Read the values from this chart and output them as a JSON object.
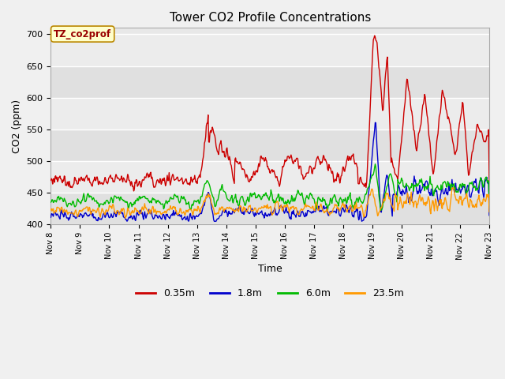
{
  "title": "Tower CO2 Profile Concentrations",
  "xlabel": "Time",
  "ylabel": "CO2 (ppm)",
  "ylim": [
    400,
    710
  ],
  "yticks": [
    400,
    450,
    500,
    550,
    600,
    650,
    700
  ],
  "label_text": "TZ_co2prof",
  "series_labels": [
    "0.35m",
    "1.8m",
    "6.0m",
    "23.5m"
  ],
  "series_colors": [
    "#cc0000",
    "#0000cc",
    "#00bb00",
    "#ff9900"
  ],
  "fig_bg_color": "#f0f0f0",
  "plot_bg_color": "#e8e8e8",
  "band_color_light": "#ebebeb",
  "band_color_dark": "#d8d8d8",
  "grid_color": "#ffffff",
  "n_points": 720,
  "x_start": 8.0,
  "x_end": 23.0,
  "xtick_positions": [
    8,
    9,
    10,
    11,
    12,
    13,
    14,
    15,
    16,
    17,
    18,
    19,
    20,
    21,
    22,
    23
  ],
  "xtick_labels": [
    "Nov 8",
    "Nov 9",
    "Nov 10",
    "Nov 11",
    "Nov 12",
    "Nov 13",
    "Nov 14",
    "Nov 15",
    "Nov 16",
    "Nov 17",
    "Nov 18",
    "Nov 19",
    "Nov 20",
    "Nov 21",
    "Nov 22",
    "Nov 23"
  ]
}
